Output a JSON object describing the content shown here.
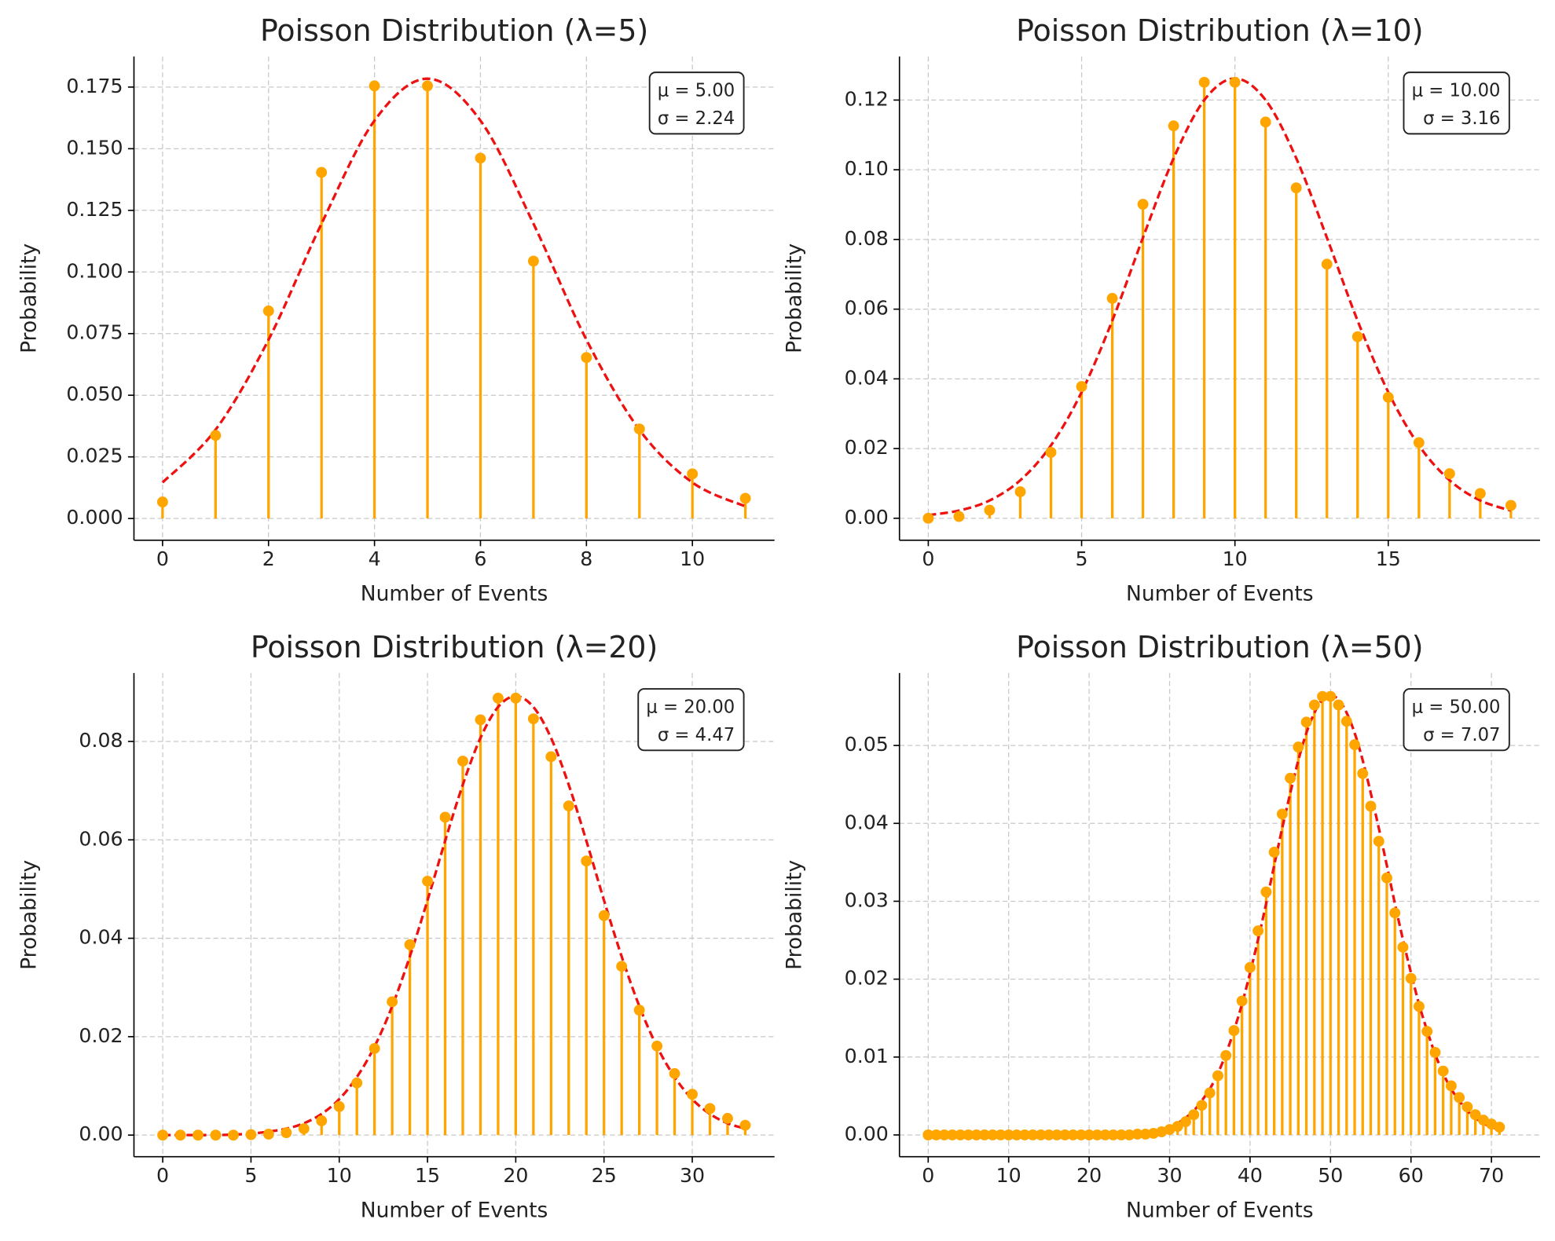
{
  "chart_data": [
    {
      "type": "stem",
      "title": "Poisson Distribution (λ=5)",
      "x_label": "Number of Events",
      "y_label": "Probability",
      "x": [
        0,
        1,
        2,
        3,
        4,
        5,
        6,
        7,
        8,
        9,
        10,
        11
      ],
      "values": [
        0.0067,
        0.0337,
        0.0842,
        0.1404,
        0.1755,
        0.1755,
        0.1462,
        0.1044,
        0.0653,
        0.0363,
        0.0181,
        0.0082
      ],
      "color": "#FFA500",
      "curve": [
        0.0146,
        0.036,
        0.0725,
        0.1196,
        0.1614,
        0.1784,
        0.1614,
        0.1196,
        0.0725,
        0.036,
        0.0146,
        0.0049
      ],
      "curve_color": "#EE1111",
      "annotation": [
        "μ = 5.00",
        "σ = 2.24"
      ],
      "xlim": [
        -0.54,
        11.55
      ],
      "ylim": [
        -0.0088,
        0.1874
      ],
      "xticks": [
        0,
        2,
        4,
        6,
        8,
        10
      ],
      "yticks": [
        {
          "value": 0,
          "label": "0.000"
        },
        {
          "value": 0.025,
          "label": "0.025"
        },
        {
          "value": 0.05,
          "label": "0.050"
        },
        {
          "value": 0.075,
          "label": "0.075"
        },
        {
          "value": 0.1,
          "label": "0.100"
        },
        {
          "value": 0.125,
          "label": "0.125"
        },
        {
          "value": 0.15,
          "label": "0.150"
        },
        {
          "value": 0.175,
          "label": "0.175"
        }
      ],
      "grid": true
    },
    {
      "type": "stem",
      "title": "Poisson Distribution (λ=10)",
      "x_label": "Number of Events",
      "y_label": "Probability",
      "x": [
        0,
        1,
        2,
        3,
        4,
        5,
        6,
        7,
        8,
        9,
        10,
        11,
        12,
        13,
        14,
        15,
        16,
        17,
        18,
        19
      ],
      "values": [
        0.0,
        0.0005,
        0.0023,
        0.0076,
        0.0189,
        0.0378,
        0.0631,
        0.0901,
        0.1126,
        0.1251,
        0.1251,
        0.1137,
        0.0948,
        0.0729,
        0.0521,
        0.0347,
        0.0217,
        0.0128,
        0.0071,
        0.0037
      ],
      "color": "#FFA500",
      "curve": [
        0.0009,
        0.0022,
        0.0051,
        0.0109,
        0.0209,
        0.0362,
        0.0567,
        0.0805,
        0.1033,
        0.12,
        0.1262,
        0.12,
        0.1033,
        0.0805,
        0.0567,
        0.0362,
        0.0209,
        0.0109,
        0.0051,
        0.0022
      ],
      "curve_color": "#EE1111",
      "annotation": [
        "μ = 10.00",
        "σ = 3.16"
      ],
      "xlim": [
        -0.94,
        19.95
      ],
      "ylim": [
        -0.0063,
        0.1325
      ],
      "xticks": [
        0,
        5,
        10,
        15
      ],
      "yticks": [
        {
          "value": 0,
          "label": "0.00"
        },
        {
          "value": 0.02,
          "label": "0.02"
        },
        {
          "value": 0.04,
          "label": "0.04"
        },
        {
          "value": 0.06,
          "label": "0.06"
        },
        {
          "value": 0.08,
          "label": "0.08"
        },
        {
          "value": 0.1,
          "label": "0.10"
        },
        {
          "value": 0.12,
          "label": "0.12"
        }
      ],
      "grid": true
    },
    {
      "type": "stem",
      "title": "Poisson Distribution (λ=20)",
      "x_label": "Number of Events",
      "y_label": "Probability",
      "x": [
        0,
        1,
        2,
        3,
        4,
        5,
        6,
        7,
        8,
        9,
        10,
        11,
        12,
        13,
        14,
        15,
        16,
        17,
        18,
        19,
        20,
        21,
        22,
        23,
        24,
        25,
        26,
        27,
        28,
        29,
        30,
        31,
        32,
        33
      ],
      "values": [
        0,
        0,
        0,
        0,
        0,
        0.0001,
        0.0002,
        0.0005,
        0.0013,
        0.0029,
        0.0058,
        0.0106,
        0.0176,
        0.0271,
        0.0387,
        0.0516,
        0.0646,
        0.076,
        0.0844,
        0.0888,
        0.0888,
        0.0846,
        0.0769,
        0.0669,
        0.0557,
        0.0446,
        0.0343,
        0.0254,
        0.0181,
        0.0125,
        0.0083,
        0.0054,
        0.0034,
        0.002
      ],
      "color": "#FFA500",
      "curve": [
        0,
        0,
        0,
        0,
        0.0001,
        0.0003,
        0.0007,
        0.0013,
        0.0024,
        0.0043,
        0.0073,
        0.0118,
        0.018,
        0.0262,
        0.0363,
        0.0477,
        0.0598,
        0.0712,
        0.0807,
        0.087,
        0.0892,
        0.087,
        0.0807,
        0.0712,
        0.0598,
        0.0477,
        0.0363,
        0.0262,
        0.018,
        0.0118,
        0.0073,
        0.0043,
        0.0024,
        0.0013
      ],
      "curve_color": "#EE1111",
      "annotation": [
        "μ = 20.00",
        "σ = 4.47"
      ],
      "xlim": [
        -1.63,
        34.66
      ],
      "ylim": [
        -0.0044,
        0.0939
      ],
      "xticks": [
        0,
        5,
        10,
        15,
        20,
        25,
        30
      ],
      "yticks": [
        {
          "value": 0,
          "label": "0.00"
        },
        {
          "value": 0.02,
          "label": "0.02"
        },
        {
          "value": 0.04,
          "label": "0.04"
        },
        {
          "value": 0.06,
          "label": "0.06"
        },
        {
          "value": 0.08,
          "label": "0.08"
        }
      ],
      "grid": true
    },
    {
      "type": "stem",
      "title": "Poisson Distribution (λ=50)",
      "x_label": "Number of Events",
      "y_label": "Probability",
      "x": [
        0,
        1,
        2,
        3,
        4,
        5,
        6,
        7,
        8,
        9,
        10,
        11,
        12,
        13,
        14,
        15,
        16,
        17,
        18,
        19,
        20,
        21,
        22,
        23,
        24,
        25,
        26,
        27,
        28,
        29,
        30,
        31,
        32,
        33,
        34,
        35,
        36,
        37,
        38,
        39,
        40,
        41,
        42,
        43,
        44,
        45,
        46,
        47,
        48,
        49,
        50,
        51,
        52,
        53,
        54,
        55,
        56,
        57,
        58,
        59,
        60,
        61,
        62,
        63,
        64,
        65,
        66,
        67,
        68,
        69,
        70,
        71
      ],
      "values": [
        0,
        0,
        0,
        0,
        0,
        0,
        0,
        0,
        0,
        0,
        0,
        0,
        0,
        0,
        0,
        0,
        0,
        0,
        0,
        0,
        0,
        0,
        0,
        0,
        0,
        0,
        0.0001,
        0.0001,
        0.0002,
        0.0004,
        0.0007,
        0.0011,
        0.0017,
        0.0026,
        0.0038,
        0.0054,
        0.0076,
        0.0102,
        0.0134,
        0.0172,
        0.0215,
        0.0262,
        0.0312,
        0.0363,
        0.0412,
        0.0458,
        0.0498,
        0.053,
        0.0552,
        0.0563,
        0.0563,
        0.0552,
        0.0531,
        0.0501,
        0.0464,
        0.0422,
        0.0377,
        0.033,
        0.0285,
        0.0241,
        0.0201,
        0.0165,
        0.0133,
        0.0106,
        0.0082,
        0.0063,
        0.0048,
        0.0036,
        0.0026,
        0.0019,
        0.0014,
        0.001
      ],
      "color": "#FFA500",
      "curve": [
        0,
        0,
        0,
        0,
        0,
        0,
        0,
        0,
        0,
        0,
        0,
        0,
        0,
        0,
        0,
        0,
        0,
        0,
        0,
        0,
        0,
        0,
        0,
        0,
        0.0001,
        0.0001,
        0.0002,
        0.0003,
        0.0004,
        0.0007,
        0.001,
        0.0015,
        0.0022,
        0.0031,
        0.0044,
        0.0059,
        0.0079,
        0.0104,
        0.0134,
        0.0168,
        0.0208,
        0.0251,
        0.0297,
        0.0346,
        0.0394,
        0.0439,
        0.0481,
        0.0516,
        0.0542,
        0.0559,
        0.0564,
        0.0559,
        0.0542,
        0.0516,
        0.0481,
        0.0439,
        0.0394,
        0.0346,
        0.0297,
        0.0251,
        0.0208,
        0.0168,
        0.0134,
        0.0104,
        0.0079,
        0.0059,
        0.0044,
        0.0031,
        0.0022,
        0.0015,
        0.001,
        0.0007
      ],
      "curve_color": "#EE1111",
      "annotation": [
        "μ = 50.00",
        "σ = 7.07"
      ],
      "xlim": [
        -3.57,
        76.04
      ],
      "ylim": [
        -0.0028,
        0.0593
      ],
      "xticks": [
        0,
        10,
        20,
        30,
        40,
        50,
        60,
        70
      ],
      "yticks": [
        {
          "value": 0,
          "label": "0.00"
        },
        {
          "value": 0.01,
          "label": "0.01"
        },
        {
          "value": 0.02,
          "label": "0.02"
        },
        {
          "value": 0.03,
          "label": "0.03"
        },
        {
          "value": 0.04,
          "label": "0.04"
        },
        {
          "value": 0.05,
          "label": "0.05"
        }
      ],
      "grid": true
    }
  ]
}
